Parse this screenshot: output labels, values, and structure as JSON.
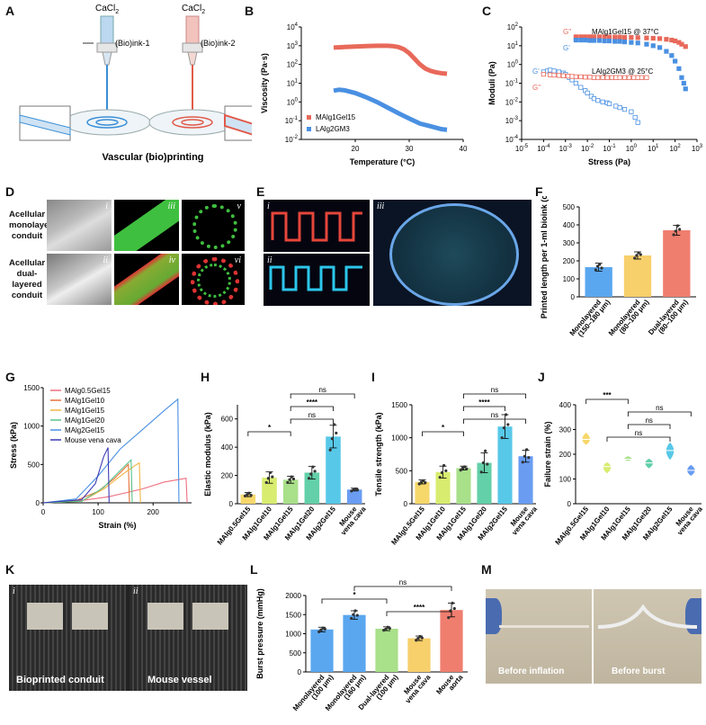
{
  "panel_labels": {
    "a": "A",
    "b": "B",
    "c": "C",
    "d": "D",
    "e": "E",
    "f": "F",
    "g": "G",
    "h": "H",
    "i": "I",
    "j": "J",
    "k": "K",
    "l": "L",
    "m": "M"
  },
  "panel_a": {
    "cacl2": "CaCl",
    "cacl2_sub": "2",
    "ink1": "(Bio)ink-1",
    "ink2": "(Bio)ink-2",
    "caption": "Vascular (bio)printing",
    "colors": {
      "ink1": "#3a8fd6",
      "ink2": "#e15a4a"
    }
  },
  "panel_d": {
    "row_labels": [
      [
        "Acellular",
        "monolayered",
        "conduit"
      ],
      [
        "Acellular",
        "dual-layered conduit"
      ]
    ],
    "numerals": [
      "i",
      "ii",
      "iii",
      "iv",
      "v",
      "vi"
    ]
  },
  "panel_e": {
    "numerals": [
      "i",
      "ii",
      "iii"
    ]
  },
  "panel_k": {
    "numerals": [
      "i",
      "ii"
    ],
    "left_caption": "Bioprinted conduit",
    "right_caption": "Mouse vessel"
  },
  "panel_m": {
    "left_caption": "Before inflation",
    "right_caption": "Before burst"
  },
  "chart_data": [
    {
      "id": "B",
      "type": "line",
      "log_y": true,
      "xlabel": "Temperature (°C)",
      "ylabel": "Viscosity (Pa·s)",
      "xlim": [
        10,
        40
      ],
      "ylim": [
        0.01,
        10000
      ],
      "x_ticks": [
        "20",
        "30",
        "40"
      ],
      "y_ticks": [
        "10<sup>-2</sup>",
        "10<sup>-1</sup>",
        "10<sup>0</sup>",
        "10<sup>1</sup>",
        "10<sup>2</sup>",
        "10<sup>3</sup>",
        "10<sup>4</sup>"
      ],
      "legend_position": "bottom-left",
      "series": [
        {
          "name": "MAlg1Gel15",
          "color": "#e8695a",
          "x": [
            16,
            18,
            20,
            22,
            24,
            26,
            27,
            28,
            29,
            30,
            31,
            32,
            33,
            34,
            35,
            36,
            37
          ],
          "y": [
            800,
            850,
            900,
            950,
            1000,
            1000,
            950,
            850,
            650,
            400,
            200,
            100,
            60,
            45,
            38,
            34,
            32
          ]
        },
        {
          "name": "LAlg2GM3",
          "color": "#4a90e2",
          "x": [
            16,
            17,
            18,
            20,
            22,
            24,
            26,
            28,
            30,
            32,
            34,
            36,
            37
          ],
          "y": [
            4,
            4.5,
            4.2,
            3,
            1.8,
            1,
            0.5,
            0.25,
            0.13,
            0.07,
            0.05,
            0.035,
            0.033
          ]
        }
      ]
    },
    {
      "id": "C",
      "type": "scatter",
      "log_x": true,
      "log_y": true,
      "xlabel": "Stress (Pa)",
      "ylabel": "Moduli (Pa)",
      "xlim": [
        1e-05,
        1000
      ],
      "ylim": [
        0.0001,
        100
      ],
      "x_ticks": [
        "10<sup>-5</sup>",
        "10<sup>-4</sup>",
        "10<sup>-3</sup>",
        "10<sup>-2</sup>",
        "10<sup>-1</sup>",
        "10<sup>0</sup>",
        "10<sup>1</sup>",
        "10<sup>2</sup>",
        "10<sup>3</sup>"
      ],
      "y_ticks": [
        "10<sup>-4</sup>",
        "10<sup>-3</sup>",
        "10<sup>-2</sup>",
        "10<sup>-1</sup>",
        "10<sup>0</sup>",
        "10<sup>1</sup>",
        "10<sup>2</sup>"
      ],
      "annotations": [
        "MAlg1Gel15 @ 37°C",
        "LAlg2GM3 @ 25°C"
      ],
      "series": [
        {
          "name": "G''",
          "label": "G''",
          "color": "#e8695a",
          "filled": true,
          "group": "MAlg1Gel15 @ 37°C",
          "x": [
            0.003,
            0.005,
            0.008,
            0.013,
            0.02,
            0.035,
            0.06,
            0.1,
            0.18,
            0.3,
            0.5,
            1,
            2,
            5,
            10,
            20,
            40,
            70,
            100,
            150,
            200,
            300
          ],
          "y": [
            30,
            30,
            30,
            30,
            30,
            30,
            30,
            29,
            29,
            29,
            28,
            28,
            27,
            26,
            25,
            24,
            22,
            20,
            18,
            15,
            12,
            9
          ]
        },
        {
          "name": "G'",
          "label": "G'",
          "color": "#4a90e2",
          "filled": true,
          "group": "MAlg1Gel15 @ 37°C",
          "x": [
            0.003,
            0.005,
            0.008,
            0.013,
            0.02,
            0.035,
            0.06,
            0.1,
            0.18,
            0.3,
            0.5,
            1,
            2,
            5,
            10,
            20,
            40,
            70,
            100,
            150,
            200,
            250,
            300
          ],
          "y": [
            20,
            20,
            20,
            19,
            19,
            19,
            18,
            18,
            17,
            17,
            16,
            15,
            14,
            12,
            10,
            8,
            5,
            3,
            1.5,
            0.6,
            0.2,
            0.1,
            0.05
          ]
        },
        {
          "name": "G'",
          "label": "G'",
          "color": "#4a90e2",
          "filled": false,
          "group": "LAlg2GM3 @ 25°C",
          "x": [
            0.0001,
            0.00015,
            0.0002,
            0.0003,
            0.0005,
            0.0008,
            0.001,
            0.0015,
            0.002,
            0.003,
            0.005,
            0.008,
            0.01,
            0.015,
            0.02,
            0.03,
            0.05,
            0.08,
            0.1,
            0.2,
            0.3,
            0.5,
            1,
            1.5,
            2
          ],
          "y": [
            0.4,
            0.45,
            0.5,
            0.45,
            0.4,
            0.35,
            0.3,
            0.2,
            0.15,
            0.1,
            0.06,
            0.04,
            0.03,
            0.02,
            0.015,
            0.012,
            0.01,
            0.009,
            0.008,
            0.006,
            0.005,
            0.004,
            0.003,
            0.0015,
            0.0008
          ]
        },
        {
          "name": "G''",
          "label": "G''",
          "color": "#e8695a",
          "filled": false,
          "group": "LAlg2GM3 @ 25°C",
          "x": [
            0.0001,
            0.0002,
            0.0003,
            0.0005,
            0.0008,
            0.0013,
            0.002,
            0.003,
            0.005,
            0.008,
            0.013,
            0.02,
            0.03,
            0.05,
            0.08,
            0.13,
            0.2,
            0.3,
            0.5,
            0.8,
            1.3,
            2,
            3,
            5
          ],
          "y": [
            0.3,
            0.28,
            0.27,
            0.26,
            0.25,
            0.24,
            0.23,
            0.22,
            0.22,
            0.21,
            0.21,
            0.2,
            0.2,
            0.2,
            0.2,
            0.2,
            0.2,
            0.2,
            0.2,
            0.2,
            0.2,
            0.2,
            0.2,
            0.2
          ]
        }
      ]
    },
    {
      "id": "F",
      "type": "bar",
      "ylabel": "Printed length per 1-ml bioink (cm)",
      "ylim": [
        0,
        500
      ],
      "y_ticks": [
        "0",
        "100",
        "200",
        "300",
        "400",
        "500"
      ],
      "categories": [
        "Monolayered (150–180 μm)",
        "Monolayered (80–100 μm)",
        "Dual-layered (80–100 μm)"
      ],
      "category_lines": [
        [
          "Monolayered",
          "(150–180 μm)"
        ],
        [
          "Monolayered",
          "(80–100 μm)"
        ],
        [
          "Dual-layered",
          "(80–100 μm)"
        ]
      ],
      "values": [
        165,
        230,
        370
      ],
      "errors": [
        22,
        20,
        28
      ],
      "points": [
        [
          150,
          170,
          180,
          160
        ],
        [
          215,
          230,
          245,
          235
        ],
        [
          345,
          365,
          395,
          375
        ]
      ],
      "colors": [
        "#5aa7f0",
        "#f7cf6b",
        "#ef7e6f"
      ]
    },
    {
      "id": "G",
      "type": "line",
      "xlabel": "Strain (%)",
      "ylabel": "Stress (kPa)",
      "xlim": [
        0,
        270
      ],
      "ylim": [
        0,
        1500
      ],
      "x_ticks": [
        "0",
        "100",
        "200"
      ],
      "y_ticks": [
        "0",
        "500",
        "1000",
        "1500"
      ],
      "legend_position": "top-left",
      "series": [
        {
          "name": "MAlg0.5Gel15",
          "color": "#ef6f80",
          "x": [
            0,
            60,
            120,
            180,
            220,
            260,
            262
          ],
          "y": [
            0,
            20,
            80,
            180,
            270,
            320,
            0
          ]
        },
        {
          "name": "MAlg1Gel10",
          "color": "#e8733a",
          "x": [
            0,
            60,
            100,
            130,
            155,
            157
          ],
          "y": [
            0,
            30,
            150,
            320,
            500,
            0
          ]
        },
        {
          "name": "MAlg1Gel15",
          "color": "#f2b443",
          "x": [
            0,
            70,
            110,
            150,
            170,
            175,
            177
          ],
          "y": [
            0,
            20,
            180,
            400,
            500,
            520,
            0
          ]
        },
        {
          "name": "MAlg1Gel20",
          "color": "#59c28a",
          "x": [
            0,
            70,
            110,
            140,
            160,
            162
          ],
          "y": [
            0,
            20,
            200,
            420,
            560,
            0
          ]
        },
        {
          "name": "MAlg2Gel15",
          "color": "#4a90e2",
          "x": [
            0,
            60,
            100,
            140,
            180,
            220,
            245,
            247
          ],
          "y": [
            0,
            50,
            350,
            700,
            950,
            1200,
            1350,
            0
          ]
        },
        {
          "name": "Mouse vena cava",
          "color": "#3b3bb5",
          "x": [
            0,
            70,
            95,
            110,
            118,
            120
          ],
          "y": [
            0,
            40,
            250,
            600,
            720,
            0
          ]
        }
      ]
    },
    {
      "id": "H",
      "type": "bar",
      "ylabel": "Elastic modulus (kPa)",
      "ylim": [
        0,
        700
      ],
      "y_ticks": [
        "0",
        "200",
        "400",
        "600"
      ],
      "categories": [
        "MAlg0.5Gel15",
        "MAlg1Gel10",
        "MAlg1Gel15",
        "MAlg1Gel20",
        "MAlg2Gel15",
        "Mouse vena cava"
      ],
      "category_lines": [
        [
          "MAlg0.5Gel15"
        ],
        [
          "MAlg1Gel10"
        ],
        [
          "MAlg1Gel15"
        ],
        [
          "MAlg1Gel20"
        ],
        [
          "MAlg2Gel15"
        ],
        [
          "Mouse",
          "vena cava"
        ]
      ],
      "values": [
        65,
        185,
        170,
        220,
        475,
        100
      ],
      "errors": [
        15,
        40,
        25,
        45,
        80,
        10
      ],
      "points": [
        [
          55,
          65,
          75,
          60
        ],
        [
          150,
          180,
          220,
          190
        ],
        [
          150,
          170,
          190,
          175
        ],
        [
          180,
          210,
          260,
          230
        ],
        [
          380,
          460,
          560,
          500
        ],
        [
          90,
          100,
          105,
          98
        ]
      ],
      "colors": [
        "#f6d76a",
        "#d8ec70",
        "#a9e08a",
        "#63d0a9",
        "#58c8e8",
        "#6a9df2"
      ],
      "significance": [
        {
          "from": 0,
          "to": 2,
          "label": "*"
        },
        {
          "from": 2,
          "to": 4,
          "label": "ns"
        },
        {
          "from": 2,
          "to": 4,
          "label": "****"
        },
        {
          "from": 2,
          "to": 5,
          "label": "ns"
        }
      ]
    },
    {
      "id": "I",
      "type": "bar",
      "ylabel": "Tensile strength (kPa)",
      "ylim": [
        0,
        1500
      ],
      "y_ticks": [
        "0",
        "500",
        "1000",
        "1500"
      ],
      "categories": [
        "MAlg0.5Gel15",
        "MAlg1Gel10",
        "MAlg1Gel15",
        "MAlg1Gel20",
        "MAlg2Gel15",
        "Mouse vena cava"
      ],
      "category_lines": [
        [
          "MAlg0.5Gel15"
        ],
        [
          "MAlg1Gel10"
        ],
        [
          "MAlg1Gel15"
        ],
        [
          "MAlg1Gel20"
        ],
        [
          "MAlg2Gel15"
        ],
        [
          "Mouse",
          "vena cava"
        ]
      ],
      "values": [
        330,
        480,
        540,
        620,
        1170,
        720
      ],
      "errors": [
        30,
        90,
        30,
        150,
        180,
        90
      ],
      "points": [
        [
          300,
          330,
          350,
          320
        ],
        [
          400,
          470,
          580,
          500
        ],
        [
          510,
          540,
          560,
          530
        ],
        [
          480,
          620,
          800,
          600
        ],
        [
          1000,
          1150,
          1350,
          1200
        ],
        [
          630,
          720,
          820,
          700
        ]
      ],
      "colors": [
        "#f6d76a",
        "#d8ec70",
        "#a9e08a",
        "#63d0a9",
        "#58c8e8",
        "#6a9df2"
      ],
      "significance": [
        {
          "from": 0,
          "to": 2,
          "label": "*"
        },
        {
          "from": 2,
          "to": 5,
          "label": "ns"
        },
        {
          "from": 2,
          "to": 4,
          "label": "****"
        },
        {
          "from": 2,
          "to": 5,
          "label": "ns"
        }
      ]
    },
    {
      "id": "J",
      "type": "violin",
      "ylabel": "Failure strain (%)",
      "ylim": [
        0,
        400
      ],
      "y_ticks": [
        "0",
        "100",
        "200",
        "300",
        "400"
      ],
      "categories": [
        "MAlg0.5Gel15",
        "MAlg1Gel10",
        "MAlg1Gel15",
        "MAlg1Gel20",
        "MAlg2Gel15",
        "Mouse vena cava"
      ],
      "category_lines": [
        [
          "MAlg0.5Gel15"
        ],
        [
          "MAlg1Gel10"
        ],
        [
          "MAlg1Gel15"
        ],
        [
          "MAlg1Gel20"
        ],
        [
          "MAlg2Gel15"
        ],
        [
          "Mouse",
          "vena cava"
        ]
      ],
      "medians": [
        260,
        150,
        180,
        165,
        215,
        135
      ],
      "ranges": [
        [
          240,
          285
        ],
        [
          125,
          165
        ],
        [
          175,
          190
        ],
        [
          145,
          180
        ],
        [
          180,
          245
        ],
        [
          115,
          155
        ]
      ],
      "colors": [
        "#f6d76a",
        "#d8ec70",
        "#a9e08a",
        "#63d0a9",
        "#58c8e8",
        "#6a9df2"
      ],
      "significance": [
        {
          "from": 0,
          "to": 2,
          "label": "***"
        },
        {
          "from": 1,
          "to": 4,
          "label": "ns"
        },
        {
          "from": 2,
          "to": 4,
          "label": "ns"
        },
        {
          "from": 2,
          "to": 5,
          "label": "ns"
        }
      ]
    },
    {
      "id": "L",
      "type": "bar",
      "ylabel": "Burst pressure (mmHg)",
      "ylim": [
        0,
        2000
      ],
      "y_ticks": [
        "0",
        "500",
        "1000",
        "1500",
        "2000"
      ],
      "categories": [
        "Monolayered (100 μm)",
        "Monolayered (160 μm)",
        "Dual-layered (100 μm)",
        "Mouse vena cava",
        "Mouse aorta"
      ],
      "category_lines": [
        [
          "Monolayered",
          "(100 μm)"
        ],
        [
          "Monolayered",
          "(160 μm)"
        ],
        [
          "Dual-layered",
          "(100 μm)"
        ],
        [
          "Mouse",
          "vena cava"
        ],
        [
          "Mouse",
          "aorta"
        ]
      ],
      "values": [
        1110,
        1490,
        1130,
        880,
        1620
      ],
      "errors": [
        60,
        110,
        50,
        60,
        180
      ],
      "points": [
        [
          1050,
          1100,
          1150,
          1120
        ],
        [
          1400,
          1500,
          1600,
          1480
        ],
        [
          1090,
          1120,
          1170,
          1140
        ],
        [
          830,
          880,
          930,
          890
        ],
        [
          1420,
          1600,
          1800,
          1660
        ]
      ],
      "colors": [
        "#5aa7f0",
        "#5aa7f0",
        "#a9e08a",
        "#f7cf6b",
        "#ef7e6f"
      ],
      "significance": [
        {
          "from": 0,
          "to": 2,
          "label": "*"
        },
        {
          "from": 1,
          "to": 4,
          "label": "ns"
        },
        {
          "from": 2,
          "to": 4,
          "label": "****"
        }
      ]
    }
  ]
}
